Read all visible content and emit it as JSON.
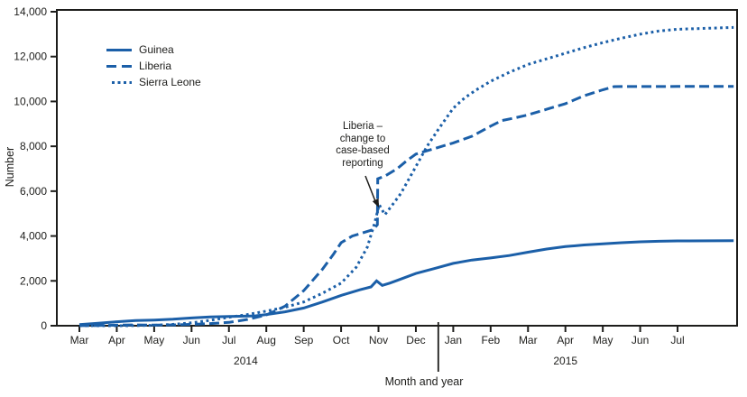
{
  "colors": {
    "line_blue": "#1b5fa8",
    "axis_black": "#1d1d1b"
  },
  "chart_data": {
    "type": "line",
    "title": "",
    "ylabel": "Number",
    "xlabel": "Month and year",
    "ylim": [
      0,
      14000
    ],
    "grid": "off",
    "legend_position": "upper-left-inside",
    "yticks": {
      "values": [
        0,
        2000,
        4000,
        6000,
        8000,
        10000,
        12000,
        14000
      ],
      "labels": [
        "0",
        "2,000",
        "4,000",
        "6,000",
        "8,000",
        "10,000",
        "12,000",
        "14,000"
      ]
    },
    "xticks": [
      {
        "label": "Mar",
        "month": 0
      },
      {
        "label": "Apr",
        "month": 1
      },
      {
        "label": "May",
        "month": 2
      },
      {
        "label": "Jun",
        "month": 3
      },
      {
        "label": "Jul",
        "month": 4
      },
      {
        "label": "Aug",
        "month": 5
      },
      {
        "label": "Sep",
        "month": 6
      },
      {
        "label": "Oct",
        "month": 7
      },
      {
        "label": "Nov",
        "month": 8
      },
      {
        "label": "Dec",
        "month": 9
      },
      {
        "label": "Jan",
        "month": 10
      },
      {
        "label": "Feb",
        "month": 11
      },
      {
        "label": "Mar",
        "month": 12
      },
      {
        "label": "Apr",
        "month": 13
      },
      {
        "label": "May",
        "month": 14
      },
      {
        "label": "Jun",
        "month": 15
      },
      {
        "label": "Jul",
        "month": 16
      }
    ],
    "year_labels": [
      {
        "label": "2014",
        "month": 4.45
      },
      {
        "label": "2015",
        "month": 13
      }
    ],
    "year_divider_month": 9.6,
    "annotation": {
      "lines": [
        "Liberia –",
        "change to",
        "case-based",
        "reporting"
      ],
      "text": "Liberia – change to case-based reporting",
      "points_to": "vertical jump in Liberia series at Nov 2014"
    },
    "series": [
      {
        "name": "Guinea",
        "style": "solid",
        "points": [
          [
            0,
            50
          ],
          [
            0.5,
            110
          ],
          [
            1,
            175
          ],
          [
            1.5,
            230
          ],
          [
            2,
            255
          ],
          [
            2.5,
            290
          ],
          [
            3,
            345
          ],
          [
            3.5,
            395
          ],
          [
            4,
            415
          ],
          [
            4.7,
            440
          ],
          [
            5,
            500
          ],
          [
            5.5,
            620
          ],
          [
            6,
            790
          ],
          [
            6.5,
            1060
          ],
          [
            7,
            1350
          ],
          [
            7.5,
            1600
          ],
          [
            7.8,
            1730
          ],
          [
            7.95,
            2000
          ],
          [
            8.1,
            1800
          ],
          [
            8.3,
            1900
          ],
          [
            8.5,
            2020
          ],
          [
            9,
            2330
          ],
          [
            9.5,
            2550
          ],
          [
            10,
            2780
          ],
          [
            10.5,
            2930
          ],
          [
            11,
            3020
          ],
          [
            11.5,
            3130
          ],
          [
            12,
            3280
          ],
          [
            12.5,
            3420
          ],
          [
            13,
            3530
          ],
          [
            13.5,
            3600
          ],
          [
            14,
            3650
          ],
          [
            14.5,
            3700
          ],
          [
            15,
            3740
          ],
          [
            15.5,
            3765
          ],
          [
            16,
            3780
          ],
          [
            17.5,
            3795
          ]
        ]
      },
      {
        "name": "Liberia",
        "style": "dashed",
        "points": [
          [
            0,
            5
          ],
          [
            0.5,
            10
          ],
          [
            1,
            25
          ],
          [
            1.5,
            35
          ],
          [
            2,
            30
          ],
          [
            2.5,
            35
          ],
          [
            3,
            60
          ],
          [
            3.5,
            95
          ],
          [
            4,
            150
          ],
          [
            4.5,
            280
          ],
          [
            5,
            480
          ],
          [
            5.5,
            870
          ],
          [
            6,
            1560
          ],
          [
            6.5,
            2520
          ],
          [
            6.8,
            3200
          ],
          [
            7,
            3700
          ],
          [
            7.3,
            4000
          ],
          [
            7.6,
            4150
          ],
          [
            7.85,
            4280
          ],
          [
            7.97,
            4500
          ],
          [
            7.98,
            6550
          ],
          [
            8.2,
            6700
          ],
          [
            8.5,
            7000
          ],
          [
            8.75,
            7350
          ],
          [
            9,
            7650
          ],
          [
            9.5,
            7900
          ],
          [
            10,
            8150
          ],
          [
            10.5,
            8450
          ],
          [
            11,
            8900
          ],
          [
            11.3,
            9150
          ],
          [
            11.6,
            9250
          ],
          [
            12,
            9400
          ],
          [
            12.5,
            9650
          ],
          [
            13,
            9900
          ],
          [
            13.5,
            10250
          ],
          [
            14,
            10520
          ],
          [
            14.3,
            10660
          ],
          [
            14.5,
            10666
          ],
          [
            15,
            10666
          ],
          [
            15.5,
            10666
          ],
          [
            16,
            10670
          ],
          [
            17.5,
            10672
          ]
        ]
      },
      {
        "name": "Sierra Leone",
        "style": "dotted",
        "points": [
          [
            0,
            0
          ],
          [
            1,
            0
          ],
          [
            1.5,
            5
          ],
          [
            2,
            20
          ],
          [
            2.5,
            60
          ],
          [
            3,
            130
          ],
          [
            3.5,
            240
          ],
          [
            4,
            380
          ],
          [
            4.5,
            500
          ],
          [
            5,
            650
          ],
          [
            5.5,
            820
          ],
          [
            6,
            1060
          ],
          [
            6.5,
            1450
          ],
          [
            7,
            1900
          ],
          [
            7.4,
            2600
          ],
          [
            7.7,
            3500
          ],
          [
            7.9,
            4600
          ],
          [
            8.02,
            5400
          ],
          [
            8.17,
            4950
          ],
          [
            8.4,
            5450
          ],
          [
            8.6,
            5900
          ],
          [
            8.8,
            6500
          ],
          [
            9,
            7100
          ],
          [
            9.3,
            8000
          ],
          [
            9.6,
            8750
          ],
          [
            10,
            9700
          ],
          [
            10.3,
            10150
          ],
          [
            10.6,
            10500
          ],
          [
            11,
            10900
          ],
          [
            11.5,
            11300
          ],
          [
            12,
            11650
          ],
          [
            12.5,
            11900
          ],
          [
            13,
            12150
          ],
          [
            13.5,
            12400
          ],
          [
            14,
            12620
          ],
          [
            14.5,
            12820
          ],
          [
            15,
            13000
          ],
          [
            15.5,
            13140
          ],
          [
            16,
            13220
          ],
          [
            17.5,
            13300
          ]
        ]
      }
    ]
  }
}
